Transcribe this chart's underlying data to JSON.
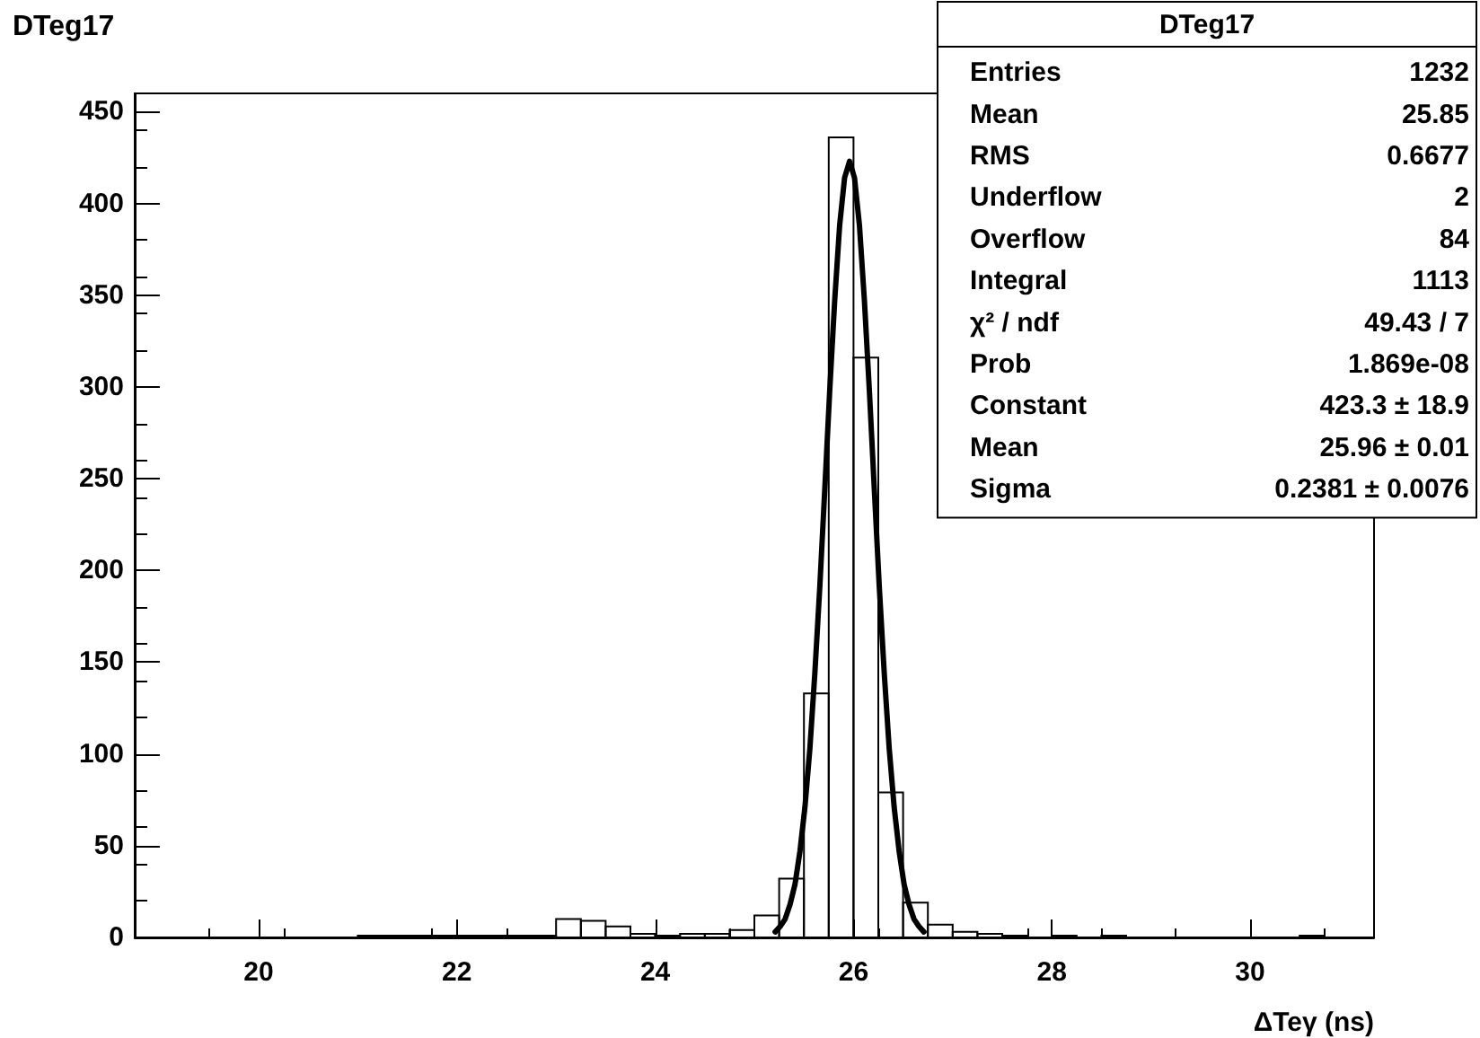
{
  "chart_data": {
    "type": "histogram",
    "title": "DTeg17",
    "xlabel": "ΔTeγ (ns)",
    "xlim": [
      18.75,
      31.25
    ],
    "xticks": [
      20,
      22,
      24,
      26,
      28,
      30
    ],
    "ylim": [
      0,
      460
    ],
    "yticks": [
      0,
      50,
      100,
      150,
      200,
      250,
      300,
      350,
      400,
      450
    ],
    "grid": false,
    "marker": "none",
    "line_style": "solid",
    "series": [
      {
        "color": "#000000",
        "bins": [
          18.75,
          19,
          19.25,
          19.5,
          19.75,
          20,
          20.25,
          20.5,
          20.75,
          21,
          21.25,
          21.5,
          21.75,
          22,
          22.25,
          22.5,
          22.75,
          23,
          23.25,
          23.5,
          23.75,
          24,
          24.25,
          24.5,
          24.75,
          25,
          25.25,
          25.5,
          25.75,
          26,
          26.25,
          26.5,
          26.75,
          27,
          27.25,
          27.5,
          27.75,
          28,
          28.25,
          28.5,
          28.75,
          29,
          29.25,
          29.5,
          29.75,
          30,
          30.25,
          30.5,
          30.75,
          31,
          31.25
        ],
        "values": [
          0,
          0,
          0,
          0,
          0,
          0,
          0,
          0,
          0,
          1,
          1,
          1,
          1,
          1,
          1,
          1,
          1,
          10,
          9,
          6,
          2,
          1,
          2,
          2,
          4,
          12,
          32,
          133,
          436,
          316,
          79,
          19,
          7,
          3,
          2,
          1,
          0,
          1,
          0,
          1,
          0,
          0,
          0,
          0,
          0,
          0,
          0,
          1,
          0,
          0
        ]
      },
      {
        "type": "line",
        "color": "#000000",
        "x": [
          25.21,
          25.26,
          25.31,
          25.36,
          25.41,
          25.46,
          25.51,
          25.56,
          25.61,
          25.66,
          25.71,
          25.76,
          25.81,
          25.86,
          25.91,
          25.96,
          26.01,
          26.06,
          26.11,
          26.16,
          26.21,
          26.26,
          26.31,
          26.36,
          26.41,
          26.46,
          26.51,
          26.56,
          26.61,
          26.66,
          26.71
        ],
        "values": [
          3,
          6,
          10,
          18,
          29,
          47,
          71,
          103,
          144,
          191,
          244,
          298,
          347,
          388,
          414,
          423,
          414,
          388,
          347,
          298,
          244,
          191,
          144,
          103,
          71,
          47,
          29,
          18,
          10,
          6,
          3
        ]
      }
    ],
    "annotations": [
      "DTeg17",
      "Entries  1232",
      "Mean  25.85",
      "RMS  0.6677",
      "Underflow  2",
      "Overflow  84",
      "Integral  1113",
      "χ² / ndf  49.43 / 7",
      "Prob  1.869e-08",
      "Constant  423.3 ± 18.9",
      "Mean  25.96 ± 0.01",
      "Sigma  0.2381 ± 0.0076"
    ]
  }
}
